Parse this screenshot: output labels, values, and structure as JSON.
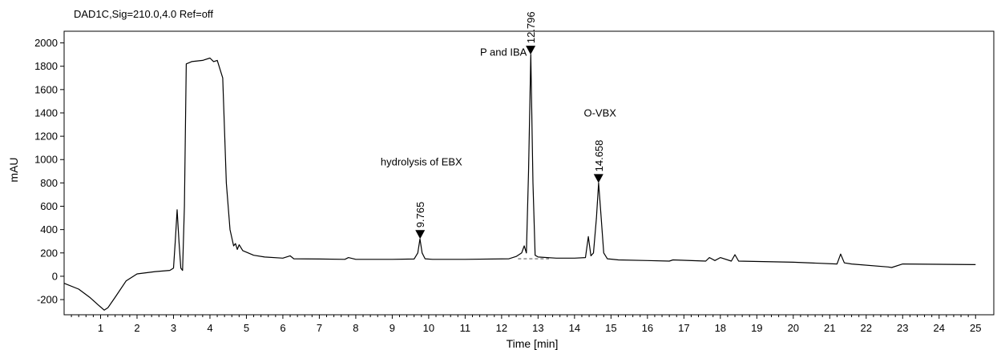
{
  "chart_data": {
    "type": "line",
    "title": "DAD1C,Sig=210.0,4.0  Ref=off",
    "xlabel": "Time [min]",
    "ylabel": "mAU",
    "xlim": [
      0,
      25.5
    ],
    "ylim": [
      -330,
      2100
    ],
    "xticks": [
      1,
      2,
      3,
      4,
      5,
      6,
      7,
      8,
      9,
      10,
      11,
      12,
      13,
      14,
      15,
      16,
      17,
      18,
      19,
      20,
      21,
      22,
      23,
      24,
      25
    ],
    "yticks": [
      -200,
      0,
      200,
      400,
      600,
      800,
      1000,
      1200,
      1400,
      1600,
      1800,
      2000
    ],
    "grid": false,
    "series": [
      {
        "x": [
          0,
          0.4,
          0.7,
          0.95,
          1.1,
          1.2,
          1.4,
          1.7,
          2.0,
          2.5,
          2.9,
          3.0,
          3.05,
          3.1,
          3.15,
          3.2,
          3.25,
          3.3,
          3.35,
          3.5,
          3.8,
          4.0,
          4.1,
          4.2,
          4.35,
          4.45,
          4.55,
          4.65,
          4.7,
          4.75,
          4.8,
          4.9,
          5.2,
          5.5,
          6.0,
          6.2,
          6.3,
          7.0,
          7.7,
          7.8,
          8.0,
          9.0,
          9.6,
          9.7,
          9.76,
          9.82,
          9.9,
          10.1,
          11.0,
          12.2,
          12.4,
          12.55,
          12.62,
          12.68,
          12.74,
          12.8,
          12.86,
          12.92,
          13.0,
          13.5,
          14.0,
          14.3,
          14.38,
          14.45,
          14.52,
          14.6,
          14.66,
          14.72,
          14.8,
          14.9,
          15.2,
          16.0,
          16.6,
          16.7,
          17.6,
          17.7,
          17.85,
          18.0,
          18.3,
          18.4,
          18.5,
          20.0,
          21.2,
          21.3,
          21.4,
          21.6,
          22.6,
          22.7,
          23.0,
          25.0
        ],
        "values": [
          -60,
          -110,
          -180,
          -250,
          -290,
          -270,
          -180,
          -40,
          20,
          40,
          50,
          70,
          300,
          570,
          300,
          70,
          50,
          600,
          1820,
          1840,
          1850,
          1870,
          1840,
          1850,
          1700,
          800,
          400,
          260,
          280,
          230,
          270,
          220,
          180,
          165,
          155,
          175,
          150,
          148,
          145,
          160,
          145,
          145,
          148,
          200,
          320,
          200,
          150,
          145,
          145,
          150,
          170,
          200,
          260,
          200,
          900,
          1900,
          800,
          180,
          165,
          155,
          155,
          160,
          340,
          175,
          200,
          500,
          800,
          550,
          200,
          150,
          140,
          135,
          130,
          140,
          130,
          160,
          135,
          160,
          130,
          185,
          130,
          120,
          105,
          190,
          115,
          105,
          80,
          75,
          105,
          100
        ]
      }
    ],
    "peaks": [
      {
        "x": 9.765,
        "y": 320,
        "label": "9.765"
      },
      {
        "x": 12.796,
        "y": 1900,
        "label": "12.796"
      },
      {
        "x": 14.658,
        "y": 800,
        "label": "14.658"
      }
    ],
    "annotations": [
      {
        "text": "hydrolysis of EBX",
        "x": 9.8,
        "y": 950
      },
      {
        "text": "P and IBA",
        "x": 12.05,
        "y": 1890
      },
      {
        "text": "O-VBX",
        "x": 14.7,
        "y": 1370
      }
    ],
    "baseline": {
      "x": [
        12.45,
        13.3
      ],
      "values": [
        150,
        150
      ]
    }
  }
}
